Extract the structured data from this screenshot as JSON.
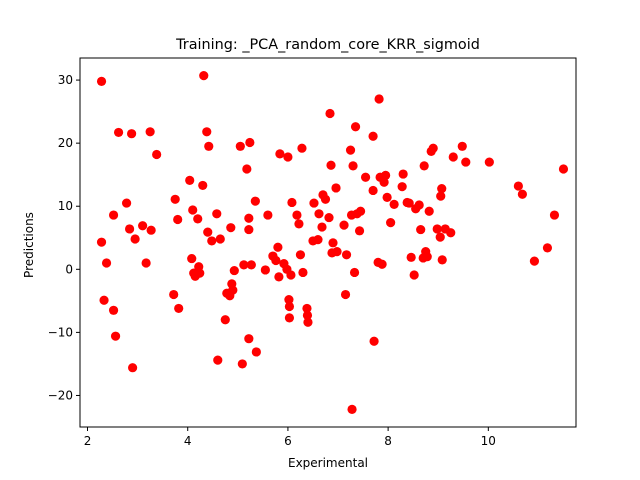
{
  "chart_data": {
    "type": "scatter",
    "title": "Training: _PCA_random_core_KRR_sigmoid",
    "xlabel": "Experimental",
    "ylabel": "Predictions",
    "xlim": [
      1.85,
      11.75
    ],
    "ylim": [
      -25,
      33.5
    ],
    "xticks": [
      2,
      4,
      6,
      8,
      10
    ],
    "yticks": [
      -20,
      -10,
      0,
      10,
      20,
      30
    ],
    "grid": false,
    "marker_color": "#ff0000",
    "series": [
      {
        "points": [
          [
            2.28,
            29.8
          ],
          [
            2.28,
            4.3
          ],
          [
            2.33,
            -4.9
          ],
          [
            2.38,
            1.0
          ],
          [
            2.52,
            8.6
          ],
          [
            2.52,
            -6.5
          ],
          [
            2.56,
            -10.6
          ],
          [
            2.62,
            21.7
          ],
          [
            2.78,
            10.5
          ],
          [
            2.84,
            6.4
          ],
          [
            2.88,
            21.5
          ],
          [
            2.9,
            -15.6
          ],
          [
            2.95,
            4.8
          ],
          [
            3.1,
            6.9
          ],
          [
            3.17,
            1.0
          ],
          [
            3.25,
            21.8
          ],
          [
            3.27,
            6.2
          ],
          [
            3.38,
            18.2
          ],
          [
            3.72,
            -4.0
          ],
          [
            3.75,
            11.1
          ],
          [
            3.8,
            7.9
          ],
          [
            3.82,
            -6.2
          ],
          [
            4.04,
            14.1
          ],
          [
            4.08,
            1.7
          ],
          [
            4.1,
            9.4
          ],
          [
            4.12,
            -0.6
          ],
          [
            4.15,
            -1.1
          ],
          [
            4.2,
            8.0
          ],
          [
            4.22,
            0.4
          ],
          [
            4.24,
            -0.6
          ],
          [
            4.3,
            13.3
          ],
          [
            4.32,
            30.7
          ],
          [
            4.38,
            21.8
          ],
          [
            4.4,
            5.9
          ],
          [
            4.42,
            19.5
          ],
          [
            4.48,
            4.5
          ],
          [
            4.58,
            8.8
          ],
          [
            4.6,
            -14.4
          ],
          [
            4.65,
            4.8
          ],
          [
            4.75,
            -8.0
          ],
          [
            4.78,
            -3.8
          ],
          [
            4.84,
            -4.2
          ],
          [
            4.86,
            6.6
          ],
          [
            4.88,
            -2.3
          ],
          [
            4.9,
            -3.3
          ],
          [
            4.93,
            -0.2
          ],
          [
            5.05,
            19.5
          ],
          [
            5.09,
            -15.0
          ],
          [
            5.12,
            0.7
          ],
          [
            5.18,
            15.9
          ],
          [
            5.22,
            8.1
          ],
          [
            5.22,
            6.3
          ],
          [
            5.22,
            -11.0
          ],
          [
            5.24,
            20.1
          ],
          [
            5.27,
            0.7
          ],
          [
            5.35,
            10.8
          ],
          [
            5.37,
            -13.1
          ],
          [
            5.55,
            -0.1
          ],
          [
            5.6,
            8.6
          ],
          [
            5.7,
            2.1
          ],
          [
            5.76,
            1.4
          ],
          [
            5.8,
            3.5
          ],
          [
            5.82,
            -1.2
          ],
          [
            5.84,
            18.3
          ],
          [
            5.92,
            0.9
          ],
          [
            5.98,
            0.0
          ],
          [
            6.0,
            17.8
          ],
          [
            6.02,
            -4.8
          ],
          [
            6.03,
            -5.9
          ],
          [
            6.03,
            -7.7
          ],
          [
            6.06,
            -0.9
          ],
          [
            6.08,
            10.6
          ],
          [
            6.18,
            8.6
          ],
          [
            6.22,
            7.2
          ],
          [
            6.25,
            2.3
          ],
          [
            6.28,
            19.2
          ],
          [
            6.3,
            -0.5
          ],
          [
            6.38,
            -6.2
          ],
          [
            6.39,
            -7.3
          ],
          [
            6.4,
            -8.4
          ],
          [
            6.5,
            4.5
          ],
          [
            6.52,
            10.5
          ],
          [
            6.6,
            4.7
          ],
          [
            6.62,
            8.8
          ],
          [
            6.68,
            6.7
          ],
          [
            6.7,
            11.8
          ],
          [
            6.75,
            11.1
          ],
          [
            6.82,
            8.2
          ],
          [
            6.84,
            24.7
          ],
          [
            6.86,
            16.5
          ],
          [
            6.88,
            2.6
          ],
          [
            6.9,
            4.2
          ],
          [
            6.96,
            12.9
          ],
          [
            6.98,
            2.8
          ],
          [
            7.12,
            7.0
          ],
          [
            7.15,
            -4.0
          ],
          [
            7.17,
            2.3
          ],
          [
            7.25,
            18.9
          ],
          [
            7.27,
            8.6
          ],
          [
            7.28,
            -22.2
          ],
          [
            7.3,
            16.4
          ],
          [
            7.33,
            -0.5
          ],
          [
            7.35,
            22.6
          ],
          [
            7.38,
            8.8
          ],
          [
            7.43,
            6.1
          ],
          [
            7.45,
            9.2
          ],
          [
            7.55,
            14.6
          ],
          [
            7.7,
            12.5
          ],
          [
            7.7,
            21.1
          ],
          [
            7.72,
            -11.4
          ],
          [
            7.8,
            1.1
          ],
          [
            7.82,
            27.0
          ],
          [
            7.84,
            14.6
          ],
          [
            7.88,
            0.8
          ],
          [
            7.92,
            13.8
          ],
          [
            7.95,
            14.9
          ],
          [
            7.98,
            11.4
          ],
          [
            8.05,
            7.4
          ],
          [
            8.12,
            10.3
          ],
          [
            8.28,
            13.1
          ],
          [
            8.3,
            15.1
          ],
          [
            8.38,
            10.6
          ],
          [
            8.42,
            10.5
          ],
          [
            8.46,
            1.9
          ],
          [
            8.52,
            -0.9
          ],
          [
            8.55,
            9.6
          ],
          [
            8.62,
            10.2
          ],
          [
            8.65,
            6.3
          ],
          [
            8.7,
            1.8
          ],
          [
            8.72,
            16.4
          ],
          [
            8.75,
            2.8
          ],
          [
            8.78,
            2.0
          ],
          [
            8.82,
            9.2
          ],
          [
            8.86,
            18.7
          ],
          [
            8.9,
            19.2
          ],
          [
            8.98,
            6.4
          ],
          [
            9.04,
            5.1
          ],
          [
            9.05,
            11.6
          ],
          [
            9.07,
            12.8
          ],
          [
            9.08,
            1.5
          ],
          [
            9.14,
            6.4
          ],
          [
            9.25,
            5.8
          ],
          [
            9.3,
            17.8
          ],
          [
            9.48,
            19.5
          ],
          [
            9.55,
            17.0
          ],
          [
            10.02,
            17.0
          ],
          [
            10.6,
            13.2
          ],
          [
            10.68,
            11.9
          ],
          [
            10.92,
            1.3
          ],
          [
            11.18,
            3.4
          ],
          [
            11.32,
            8.6
          ],
          [
            11.5,
            15.9
          ]
        ]
      }
    ]
  }
}
